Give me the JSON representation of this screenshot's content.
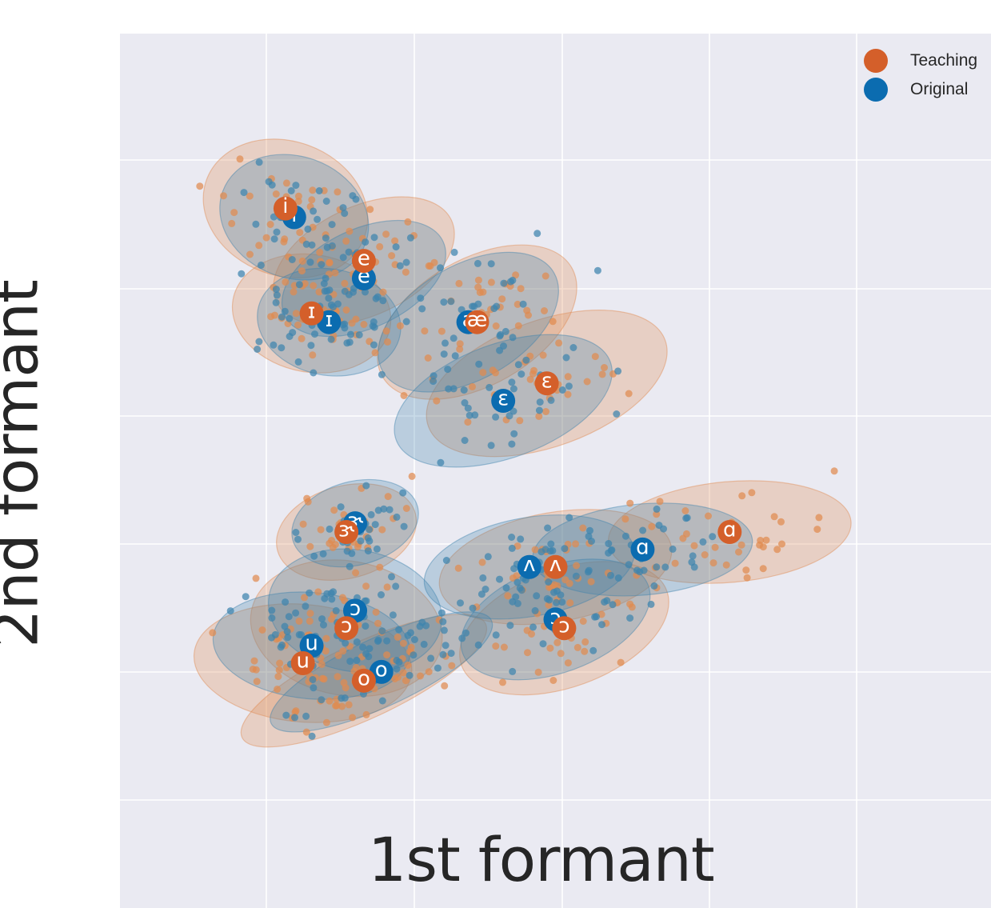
{
  "chart_data": {
    "type": "scatter",
    "title": "",
    "xlabel": "1st formant",
    "ylabel": "2nd formant",
    "xlim": [
      0,
      100
    ],
    "ylim": [
      0,
      100
    ],
    "grid": true,
    "tick_labels_visible": false,
    "legend_position": "top-right",
    "series": [
      {
        "name": "Teaching",
        "color": "#d45f2a",
        "scatter_color": "#e08a4f",
        "centroids": [
          {
            "label": "i",
            "x": 19,
            "y": 80
          },
          {
            "label": "e",
            "x": 28,
            "y": 74
          },
          {
            "label": "ɪ",
            "x": 22,
            "y": 68
          },
          {
            "label": "æ",
            "x": 41,
            "y": 67
          },
          {
            "label": "ɛ",
            "x": 49,
            "y": 60
          },
          {
            "label": "ɝ",
            "x": 26,
            "y": 43
          },
          {
            "label": "ʌ",
            "x": 50,
            "y": 39
          },
          {
            "label": "ɔ",
            "x": 26,
            "y": 32
          },
          {
            "label": "ɔ",
            "x": 51,
            "y": 32
          },
          {
            "label": "ɑ",
            "x": 70,
            "y": 43
          },
          {
            "label": "u",
            "x": 21,
            "y": 28
          },
          {
            "label": "o",
            "x": 28,
            "y": 26
          }
        ]
      },
      {
        "name": "Original",
        "color": "#0b6cb0",
        "scatter_color": "#3d83ad",
        "centroids": [
          {
            "label": "i",
            "x": 20,
            "y": 79
          },
          {
            "label": "e",
            "x": 28,
            "y": 72
          },
          {
            "label": "ɪ",
            "x": 24,
            "y": 67
          },
          {
            "label": "a",
            "x": 40,
            "y": 67
          },
          {
            "label": "ɛ",
            "x": 44,
            "y": 58
          },
          {
            "label": "ɝ",
            "x": 27,
            "y": 44
          },
          {
            "label": "ʌ",
            "x": 47,
            "y": 39
          },
          {
            "label": "ɔ",
            "x": 27,
            "y": 34
          },
          {
            "label": "ɔ",
            "x": 50,
            "y": 33
          },
          {
            "label": "ɑ",
            "x": 60,
            "y": 41
          },
          {
            "label": "u",
            "x": 22,
            "y": 30
          },
          {
            "label": "o",
            "x": 30,
            "y": 27
          }
        ]
      }
    ]
  }
}
